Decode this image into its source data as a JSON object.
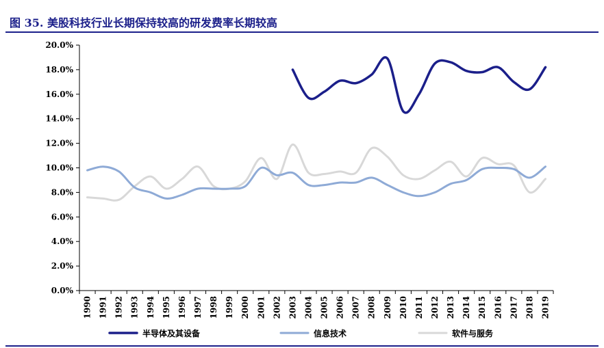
{
  "header": {
    "title": "图 35. 美股科技行业长期保持较高的研发费率长期较高"
  },
  "chart_data": {
    "type": "line",
    "title": "图 35. 美股科技行业长期保持较高的研发费率长期较高",
    "xlabel": "",
    "ylabel": "",
    "ylim": [
      0,
      20
    ],
    "y_ticks": [
      0,
      2,
      4,
      6,
      8,
      10,
      12,
      14,
      16,
      18,
      20
    ],
    "y_tick_labels": [
      "0.0%",
      "2.0%",
      "4.0%",
      "6.0%",
      "8.0%",
      "10.0%",
      "12.0%",
      "14.0%",
      "16.0%",
      "18.0%",
      "20.0%"
    ],
    "grid": false,
    "legend_position": "bottom",
    "categories": [
      "1990",
      "1991",
      "1992",
      "1993",
      "1994",
      "1995",
      "1996",
      "1997",
      "1998",
      "1999",
      "2000",
      "2001",
      "2002",
      "2003",
      "2004",
      "2005",
      "2006",
      "2007",
      "2008",
      "2009",
      "2010",
      "2011",
      "2012",
      "2013",
      "2014",
      "2015",
      "2016",
      "2017",
      "2018",
      "2019"
    ],
    "series": [
      {
        "name": "半导体及其设备",
        "color": "#1b1f8a",
        "values": [
          null,
          null,
          null,
          null,
          null,
          null,
          null,
          null,
          null,
          null,
          null,
          null,
          null,
          18.0,
          15.7,
          16.2,
          17.1,
          16.9,
          17.6,
          18.9,
          14.6,
          16.0,
          18.5,
          18.6,
          17.9,
          17.8,
          18.2,
          17.0,
          16.4,
          18.2
        ]
      },
      {
        "name": "信息技术",
        "color": "#8eaad6",
        "values": [
          9.8,
          10.1,
          9.7,
          8.4,
          8.0,
          7.5,
          7.8,
          8.3,
          8.3,
          8.3,
          8.5,
          10.0,
          9.4,
          9.6,
          8.6,
          8.6,
          8.8,
          8.8,
          9.2,
          8.6,
          8.0,
          7.7,
          8.0,
          8.7,
          9.0,
          9.9,
          10.0,
          9.9,
          9.2,
          10.1
        ]
      },
      {
        "name": "软件与服务",
        "color": "#d8d8d8",
        "values": [
          7.6,
          7.5,
          7.4,
          8.5,
          9.3,
          8.3,
          9.1,
          10.1,
          8.5,
          8.3,
          8.9,
          10.8,
          9.1,
          11.9,
          9.6,
          9.5,
          9.7,
          9.6,
          11.6,
          10.9,
          9.4,
          9.1,
          9.8,
          10.5,
          9.3,
          10.8,
          10.3,
          10.2,
          8.0,
          9.1
        ]
      }
    ]
  }
}
